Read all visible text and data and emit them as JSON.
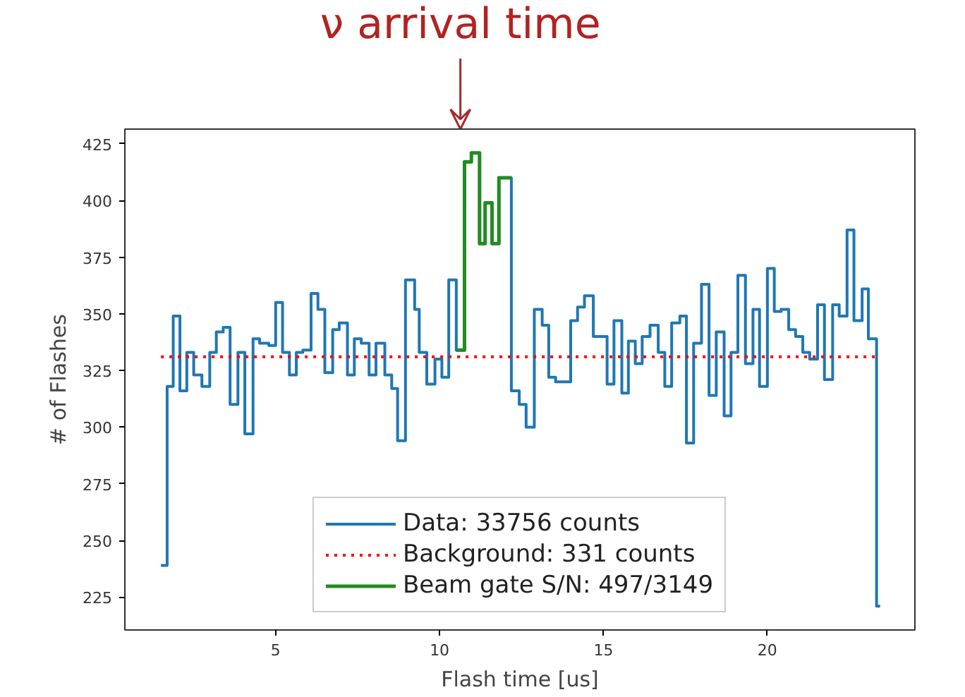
{
  "chart_data": {
    "type": "step",
    "xlabel": "Flash time [us]",
    "ylabel": "# of Flashes",
    "annotations": [
      "ν arrival time"
    ],
    "xlim": [
      0.4,
      24.5
    ],
    "ylim": [
      210.5,
      431.5
    ],
    "xticks": [
      5,
      10,
      15,
      20
    ],
    "yticks": [
      225,
      250,
      275,
      300,
      325,
      350,
      375,
      400,
      425
    ],
    "grid": false,
    "legend": "bottom",
    "line_style": "solid",
    "marker": "none",
    "ref_lines": [
      {
        "axis": "y",
        "value": 331,
        "label": "Background: 331 counts",
        "color": "#ff0000",
        "line_style": "dotted"
      }
    ],
    "series": [
      {
        "name": "Data: 33756 counts",
        "color": "#1f77b4",
        "x": [
          1.5,
          1.69,
          1.875,
          2.08,
          2.29,
          2.5,
          2.75,
          2.99,
          3.19,
          3.4,
          3.61,
          3.85,
          4.06,
          4.31,
          4.51,
          4.79,
          5.0,
          5.21,
          5.42,
          5.63,
          5.83,
          6.08,
          6.29,
          6.5,
          6.74,
          6.94,
          7.19,
          7.4,
          7.61,
          7.85,
          8.06,
          8.33,
          8.54,
          8.72,
          8.96,
          9.24,
          9.38,
          9.61,
          9.86,
          10.07,
          10.28,
          10.51,
          10.76,
          10.97,
          11.22,
          11.39,
          11.6,
          11.81,
          11.97,
          12.19,
          12.43,
          12.64,
          12.89,
          13.13,
          13.33,
          13.54,
          14.0,
          14.21,
          14.42,
          14.69,
          15.11,
          15.32,
          15.56,
          15.76,
          15.97,
          16.18,
          16.42,
          16.67,
          16.87,
          17.08,
          17.33,
          17.53,
          17.75,
          17.99,
          18.22,
          18.44,
          18.68,
          18.89,
          19.1,
          19.33,
          19.56,
          19.76,
          20.0,
          20.21,
          20.42,
          20.65,
          20.86,
          21.08,
          21.29,
          21.53,
          21.74,
          21.99,
          22.19,
          22.43,
          22.64,
          22.89,
          23.08,
          23.33,
          23.44
        ],
        "values": [
          239,
          318,
          349,
          316,
          333,
          323,
          318,
          333,
          342,
          344,
          310,
          333,
          297,
          339,
          337,
          336,
          355,
          333,
          323,
          333,
          334,
          359,
          352,
          324,
          343,
          346,
          323,
          339,
          337,
          323,
          337,
          323,
          317,
          294,
          365,
          352,
          333,
          319,
          330,
          322,
          365,
          334,
          417,
          421,
          381,
          399,
          381,
          410,
          410,
          316,
          310,
          300,
          352,
          345,
          322,
          320,
          347,
          353,
          358,
          340,
          319,
          347,
          315,
          338,
          328,
          340,
          345,
          333,
          318,
          346,
          349,
          293,
          337,
          363,
          314,
          342,
          305,
          333,
          367,
          328,
          352,
          318,
          370,
          351,
          352,
          343,
          340,
          333,
          330,
          354,
          321,
          354,
          349,
          387,
          347,
          361,
          339,
          221,
          221
        ]
      },
      {
        "name": "Beam gate S/N: 497/3149",
        "color": "#228b22",
        "x": [
          10.51,
          10.76,
          10.97,
          11.22,
          11.39,
          11.6,
          11.81,
          11.97,
          12.19
        ],
        "values": [
          334,
          417,
          421,
          381,
          399,
          381,
          410,
          410,
          410
        ]
      }
    ]
  }
}
